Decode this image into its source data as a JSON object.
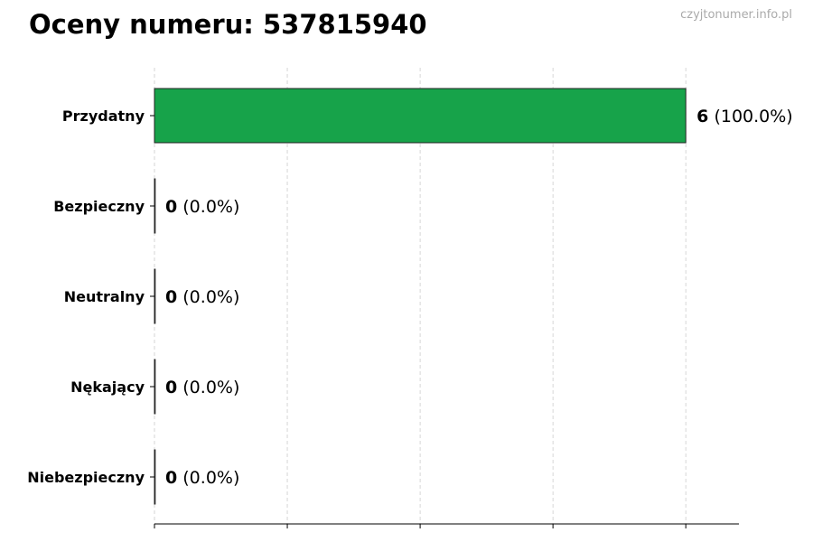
{
  "title": "Oceny numeru: 537815940",
  "watermark": "czyjtonumer.info.pl",
  "chart_data": {
    "type": "bar",
    "orientation": "horizontal",
    "categories": [
      "Przydatny",
      "Bezpieczny",
      "Neutralny",
      "Nękający",
      "Niebezpieczny"
    ],
    "values": [
      6,
      0,
      0,
      0,
      0
    ],
    "labels": [
      "(100.0%)",
      "(0.0%)",
      "(0.0%)",
      "(0.0%)",
      "(0.0%)"
    ],
    "xlim": [
      0,
      6.6
    ],
    "xticks": [
      0,
      1.5,
      3,
      4.5,
      6
    ],
    "xtick_labels_shown": false,
    "grid": "vertical dashed",
    "bar_color": "#17a34a",
    "xlabel": "",
    "ylabel": ""
  }
}
